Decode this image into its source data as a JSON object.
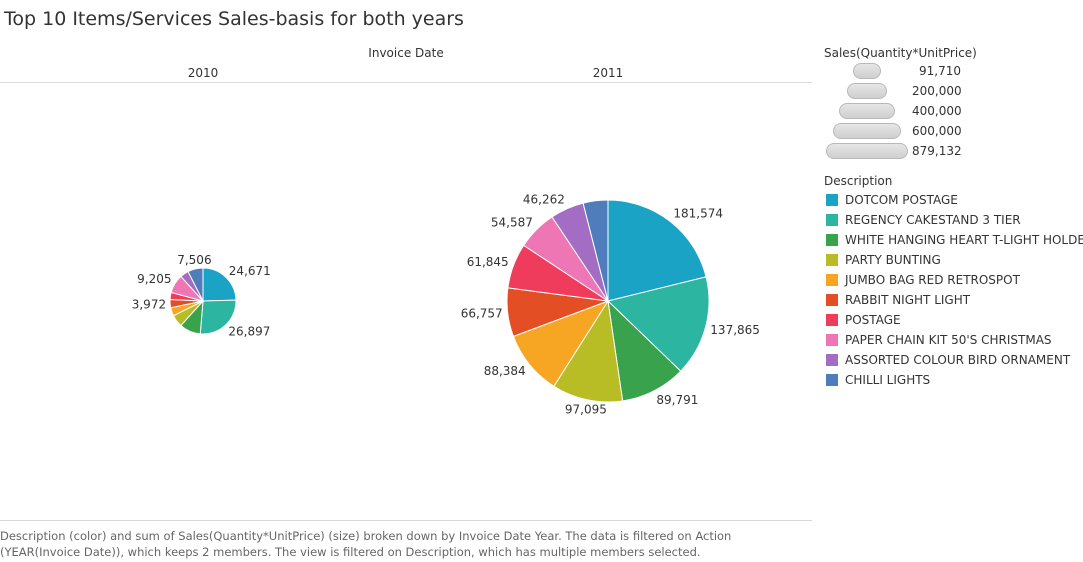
{
  "title": "Top 10 Items/Services Sales-basis for both years",
  "column_header": "Invoice Date",
  "years": [
    "2010",
    "2011"
  ],
  "size_legend": {
    "title": "Sales(Quantity*UnitPrice)",
    "items": [
      "91,710",
      "200,000",
      "400,000",
      "600,000",
      "879,132"
    ]
  },
  "color_legend": {
    "title": "Description",
    "items": [
      {
        "label": "DOTCOM POSTAGE",
        "color": "#1BA3C6"
      },
      {
        "label": "REGENCY CAKESTAND 3 TIER",
        "color": "#2CB5A0"
      },
      {
        "label": "WHITE HANGING HEART T-LIGHT HOLDER",
        "color": "#38A24C"
      },
      {
        "label": "PARTY BUNTING",
        "color": "#B8BC25"
      },
      {
        "label": "JUMBO BAG RED RETROSPOT",
        "color": "#F6A623"
      },
      {
        "label": "RABBIT NIGHT LIGHT",
        "color": "#E44E25"
      },
      {
        "label": "POSTAGE",
        "color": "#EF3B5C"
      },
      {
        "label": "PAPER CHAIN KIT 50'S CHRISTMAS",
        "color": "#EE76B5"
      },
      {
        "label": "ASSORTED COLOUR BIRD ORNAMENT",
        "color": "#A26DC2"
      },
      {
        "label": "CHILLI LIGHTS",
        "color": "#4F7CBA"
      }
    ]
  },
  "chart_data": {
    "type": "pie",
    "title": "Top 10 Items/Services Sales-basis for both years",
    "size_measure": "Sales(Quantity*UnitPrice)",
    "categories": [
      "DOTCOM POSTAGE",
      "REGENCY CAKESTAND 3 TIER",
      "WHITE HANGING HEART T-LIGHT HOLDER",
      "PARTY BUNTING",
      "JUMBO BAG RED RETROSPOT",
      "RABBIT NIGHT LIGHT",
      "POSTAGE",
      "PAPER CHAIN KIT 50'S CHRISTMAS",
      "ASSORTED COLOUR BIRD ORNAMENT",
      "CHILLI LIGHTS"
    ],
    "series": [
      {
        "name": "2010",
        "values": [
          24671,
          26897,
          10400,
          6000,
          4100,
          3972,
          3500,
          9205,
          4200,
          7506
        ],
        "labeled": [
          24671,
          26897,
          null,
          null,
          null,
          3972,
          null,
          9205,
          null,
          7506
        ]
      },
      {
        "name": "2011",
        "values": [
          181574,
          137865,
          89791,
          97095,
          88384,
          66757,
          61845,
          54587,
          46262,
          34000
        ],
        "labeled": [
          181574,
          137865,
          89791,
          97095,
          88384,
          66757,
          61845,
          54587,
          46262,
          null
        ]
      }
    ],
    "totals": [
      100451,
      858160
    ]
  },
  "caption": "Description (color) and sum of Sales(Quantity*UnitPrice) (size) broken down by Invoice Date Year.  The data is filtered on Action (YEAR(Invoice Date)), which keeps 2 members. The view is filtered on Description, which has multiple members selected."
}
